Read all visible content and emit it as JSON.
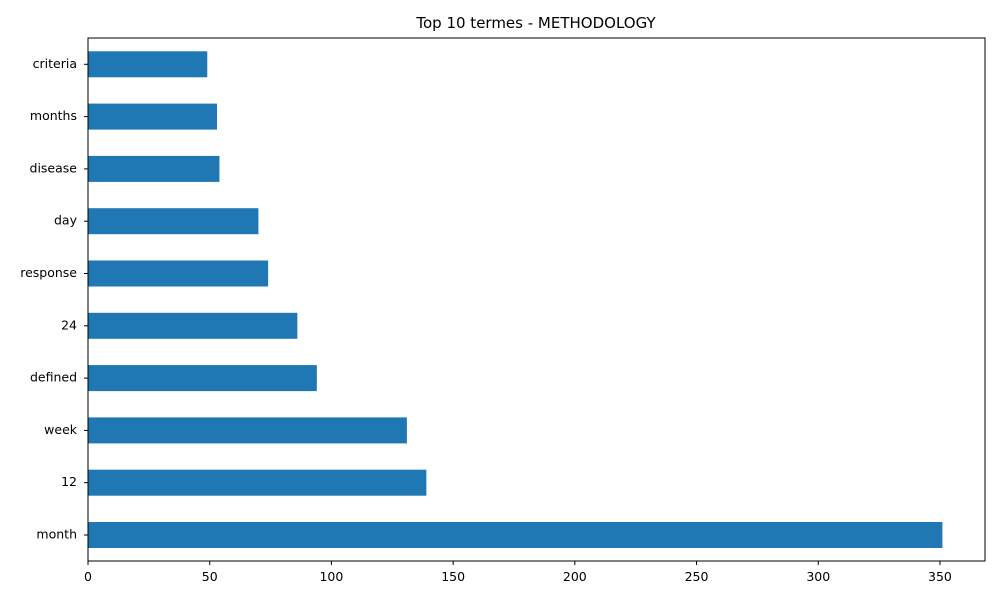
{
  "chart_data": {
    "type": "bar",
    "orientation": "horizontal",
    "title": "Top 10 termes - METHODOLOGY",
    "xlabel": "",
    "ylabel": "",
    "categories": [
      "month",
      "12",
      "week",
      "defined",
      "24",
      "response",
      "day",
      "disease",
      "months",
      "criteria"
    ],
    "values": [
      351,
      139,
      131,
      94,
      86,
      74,
      70,
      54,
      53,
      49
    ],
    "xlim": [
      0,
      368.5
    ],
    "xticks": [
      0,
      50,
      100,
      150,
      200,
      250,
      300,
      350
    ],
    "bar_color": "#1f77b4",
    "grid": false,
    "legend": "none"
  }
}
